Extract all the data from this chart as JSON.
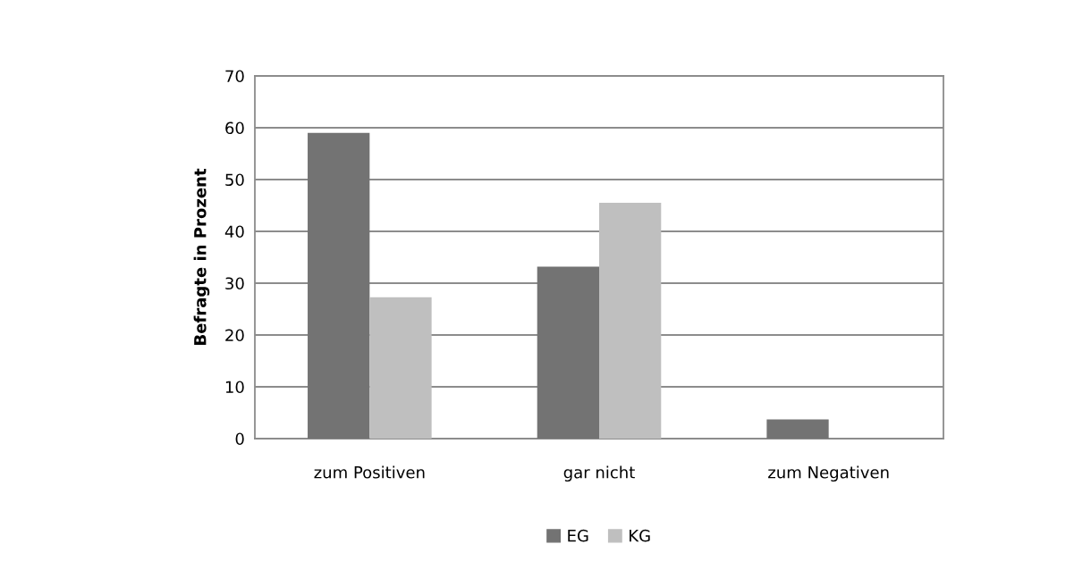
{
  "chart_data": {
    "type": "bar",
    "ylabel": "Befragte in Prozent",
    "categories": [
      "zum Positiven",
      "gar nicht",
      "zum Negativen"
    ],
    "series": [
      {
        "name": "EG",
        "color": "#737373",
        "values": [
          59.0,
          33.2,
          3.7
        ]
      },
      {
        "name": "KG",
        "color": "#bfbfbf",
        "values": [
          27.3,
          45.5,
          0
        ]
      }
    ],
    "ylim": [
      0,
      70
    ],
    "yticks": [
      0,
      10,
      20,
      30,
      40,
      50,
      60,
      70
    ],
    "grid": "y",
    "legend": "bottom"
  }
}
